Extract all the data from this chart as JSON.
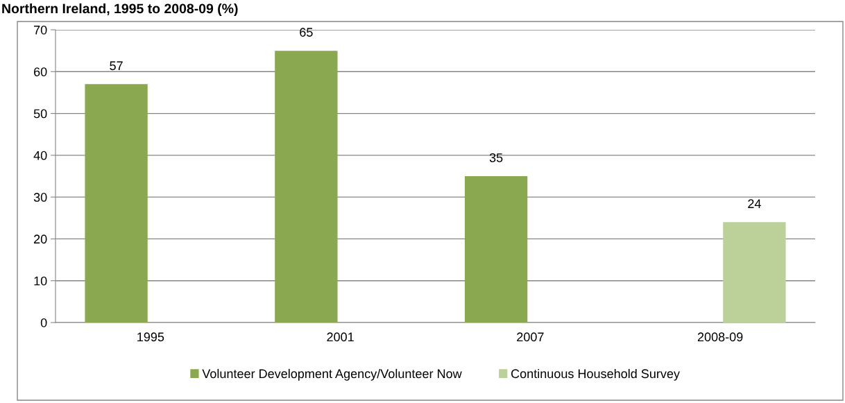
{
  "chart_data": {
    "type": "bar",
    "title": "Northern Ireland, 1995 to 2008-09 (%)",
    "categories": [
      "1995",
      "2001",
      "2007",
      "2008-09"
    ],
    "series": [
      {
        "name": "Volunteer Development Agency/Volunteer Now",
        "color": "#8aa84f",
        "values": [
          57,
          65,
          35,
          null
        ]
      },
      {
        "name": "Continuous Household Survey",
        "color": "#bcd19a",
        "values": [
          null,
          null,
          null,
          24
        ]
      }
    ],
    "ylim": [
      0,
      70
    ],
    "yticks": [
      0,
      10,
      20,
      30,
      40,
      50,
      60,
      70
    ],
    "grid": "y",
    "legend": "bottom",
    "data_labels": true
  }
}
